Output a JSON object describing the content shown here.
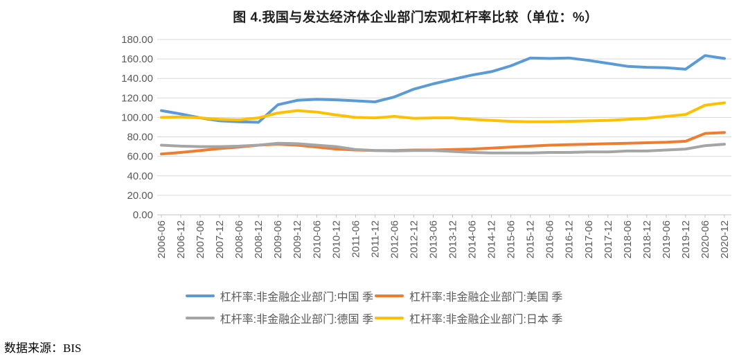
{
  "source_note": "数据来源：BIS",
  "chart_data": {
    "type": "line",
    "title": "图 4.我国与发达经济体企业部门宏观杠杆率比较（单位：%）",
    "ylabel": "",
    "xlabel": "",
    "ylim": [
      0,
      180
    ],
    "grid": true,
    "legend_position": "bottom",
    "gridline_color": "#D9D9D9",
    "axis_color": "#BFBFBF",
    "axis_label_color": "#595959",
    "yticks": [
      "180.00",
      "160.00",
      "140.00",
      "120.00",
      "100.00",
      "80.00",
      "60.00",
      "40.00",
      "20.00",
      "0.00"
    ],
    "categories": [
      "2006-06",
      "2006-12",
      "2007-06",
      "2007-12",
      "2008-06",
      "2008-12",
      "2009-06",
      "2009-12",
      "2010-06",
      "2010-12",
      "2011-06",
      "2011-12",
      "2012-06",
      "2012-12",
      "2013-06",
      "2013-12",
      "2014-06",
      "2014-12",
      "2015-06",
      "2015-12",
      "2016-06",
      "2016-12",
      "2017-06",
      "2017-12",
      "2018-06",
      "2018-12",
      "2019-06",
      "2019-12",
      "2020-06",
      "2020-12"
    ],
    "series": [
      {
        "name": "杠杆率:非金融企业部门:中国 季",
        "color": "#5B9BD5",
        "values": [
          107,
          103.5,
          99.5,
          96.5,
          95.5,
          95,
          113,
          117.5,
          118.5,
          118,
          117,
          116,
          121,
          129,
          134.5,
          139,
          143.5,
          147,
          153,
          161,
          160.5,
          161,
          158.5,
          155.5,
          152.5,
          151.5,
          151,
          149.5,
          163.5,
          160.5
        ]
      },
      {
        "name": "杠杆率:非金融企业部门:美国 季",
        "color": "#ED7D31",
        "values": [
          62.5,
          64,
          66,
          68,
          69.5,
          71.5,
          72.5,
          71.5,
          69.5,
          67.5,
          66.5,
          66,
          66,
          66.5,
          66.5,
          67,
          67.5,
          68.5,
          69.5,
          70.5,
          71.5,
          72,
          72.5,
          73,
          73.5,
          74,
          74.5,
          75.5,
          83.5,
          84.5
        ]
      },
      {
        "name": "杠杆率:非金融企业部门:德国 季",
        "color": "#A5A5A5",
        "values": [
          71.5,
          70.5,
          70,
          70,
          70.5,
          71.5,
          73.5,
          73,
          71.5,
          70,
          67,
          66,
          65.5,
          66,
          66,
          65,
          64,
          63.5,
          63.5,
          63.5,
          64,
          64,
          64.5,
          64.5,
          65.5,
          65.5,
          66.5,
          67.5,
          71,
          72.5
        ]
      },
      {
        "name": "杠杆率:非金融企业部门:日本 季",
        "color": "#FFC000",
        "values": [
          100,
          100.5,
          99.5,
          98,
          97.5,
          99.5,
          104.5,
          107,
          105.5,
          102.5,
          100,
          99.5,
          101,
          99,
          99.5,
          99.5,
          98,
          97,
          96,
          95.5,
          95.5,
          96,
          96.5,
          97,
          98,
          99,
          101,
          103,
          112.5,
          115
        ]
      }
    ]
  }
}
